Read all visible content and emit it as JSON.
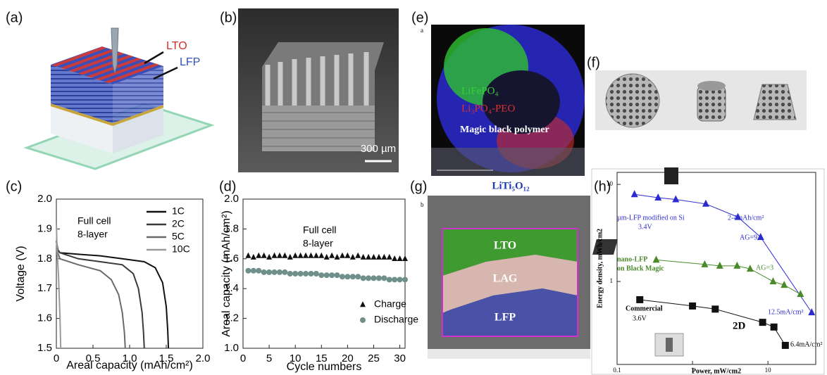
{
  "panels": {
    "a": {
      "label": "(a)",
      "lto": "LTO",
      "lfp": "LFP"
    },
    "b": {
      "label": "(b)",
      "scale": "300 µm"
    },
    "c": {
      "label": "(c)"
    },
    "d": {
      "label": "(d)"
    },
    "e": {
      "label": "(e)",
      "tag": "a",
      "line1": "LiFePO₄",
      "line2": "Li₃PO₄-PEO",
      "line3": "Magic black polymer",
      "caption": "LiTi₅O₁₂"
    },
    "f": {
      "label": "(f)"
    },
    "g": {
      "label": "(g)",
      "tag": "b",
      "lto": "LTO",
      "lag": "LAG",
      "lfp": "LFP"
    },
    "h": {
      "label": "(h)"
    }
  },
  "chart_data": [
    {
      "type": "line",
      "x_label": "Areal capacity (mAh/cm²)",
      "y_label": "Voltage (V)",
      "xlim": [
        0,
        2
      ],
      "ylim": [
        1.5,
        2
      ],
      "xticks": [
        0,
        0.5,
        {
          "value": 1,
          "label": "1.0"
        },
        1.5,
        {
          "value": 2,
          "label": "2.0"
        }
      ],
      "yticks": [
        1.5,
        1.6,
        1.7,
        1.8,
        1.9,
        {
          "value": 2,
          "label": "2.0"
        }
      ],
      "legend": "upper right",
      "annotations": [
        "Full cell",
        "8-layer"
      ],
      "series": [
        {
          "name": "1C",
          "color": "#111111",
          "x": [
            0,
            0.02,
            0.05,
            0.3,
            0.6,
            0.9,
            1.2,
            1.35,
            1.45,
            1.5,
            1.52,
            1.53
          ],
          "values": [
            1.86,
            1.83,
            1.82,
            1.815,
            1.81,
            1.8,
            1.79,
            1.77,
            1.72,
            1.64,
            1.56,
            1.5
          ]
        },
        {
          "name": "2C",
          "color": "#3a3a3a",
          "x": [
            0,
            0.02,
            0.05,
            0.3,
            0.6,
            0.9,
            1.05,
            1.12,
            1.17,
            1.19,
            1.2
          ],
          "values": [
            1.86,
            1.83,
            1.82,
            1.8,
            1.79,
            1.78,
            1.75,
            1.7,
            1.62,
            1.55,
            1.5
          ]
        },
        {
          "name": "5C",
          "color": "#6a6a6a",
          "x": [
            0,
            0.02,
            0.05,
            0.3,
            0.6,
            0.75,
            0.85,
            0.9,
            0.93,
            0.94
          ],
          "values": [
            1.86,
            1.82,
            1.8,
            1.78,
            1.76,
            1.73,
            1.68,
            1.62,
            1.55,
            1.5
          ]
        },
        {
          "name": "10C",
          "color": "#9a9a9a",
          "x": [
            0,
            0.01,
            0.03,
            0.05,
            0.06
          ],
          "values": [
            1.92,
            1.83,
            1.74,
            1.6,
            1.5
          ]
        }
      ]
    },
    {
      "type": "scatter",
      "x_label": "Cycle numbers",
      "y_label": "Areal capacity (mAh/cm²)",
      "xlim": [
        0,
        31
      ],
      "ylim": [
        1,
        2
      ],
      "xticks": [
        0,
        5,
        10,
        15,
        20,
        25,
        30
      ],
      "yticks": [
        {
          "value": 1,
          "label": "1.0"
        },
        1.2,
        1.4,
        1.6,
        1.8,
        {
          "value": 2,
          "label": "2.0"
        }
      ],
      "legend": "lower right",
      "annotations": [
        "Full cell",
        "8-layer"
      ],
      "x": [
        1,
        2,
        3,
        4,
        5,
        6,
        7,
        8,
        9,
        10,
        11,
        12,
        13,
        14,
        15,
        16,
        17,
        18,
        19,
        20,
        21,
        22,
        23,
        24,
        25,
        26,
        27,
        28,
        29,
        30,
        31
      ],
      "series": [
        {
          "name": "Charge",
          "color": "#111111",
          "marker": "triangle",
          "values": [
            1.62,
            1.61,
            1.62,
            1.62,
            1.61,
            1.62,
            1.62,
            1.62,
            1.61,
            1.62,
            1.62,
            1.62,
            1.62,
            1.62,
            1.62,
            1.61,
            1.62,
            1.61,
            1.62,
            1.62,
            1.61,
            1.62,
            1.61,
            1.61,
            1.61,
            1.61,
            1.61,
            1.61,
            1.6,
            1.6,
            1.6
          ]
        },
        {
          "name": "Discharge",
          "color": "#6f8f8a",
          "marker": "circle",
          "values": [
            1.52,
            1.52,
            1.52,
            1.51,
            1.51,
            1.51,
            1.51,
            1.51,
            1.5,
            1.5,
            1.5,
            1.5,
            1.5,
            1.5,
            1.49,
            1.49,
            1.49,
            1.49,
            1.48,
            1.48,
            1.48,
            1.48,
            1.47,
            1.47,
            1.47,
            1.47,
            1.47,
            1.46,
            1.46,
            1.46,
            1.46
          ]
        }
      ]
    },
    {
      "type": "line",
      "x_label": "Power, mW/cm2",
      "y_label": "Energy density, mWh/cm2",
      "x_log": true,
      "y_log": true,
      "xlim": [
        0.1,
        43
      ],
      "ylim": [
        0.14,
        13.3
      ],
      "xticks": [
        0.1,
        1,
        10
      ],
      "yticks": [
        1,
        10
      ],
      "annotations": [
        "3.4V",
        "2-4mAh/cm²",
        "AG=9",
        "on Black Magic",
        "AG=3",
        "12.5mA/cm²",
        "3.6V",
        "2D",
        "6.4mA/cm²"
      ],
      "series": [
        {
          "name": "µm-LFP modified on Si",
          "color": "#2b2bd0",
          "marker": "triangle",
          "x": [
            0.17,
            0.35,
            0.6,
            1.5,
            4,
            8,
            38
          ],
          "values": [
            7.9,
            7.3,
            7,
            6.3,
            4.6,
            2.86,
            0.48
          ]
        },
        {
          "name": "nano-LFP",
          "color": "#4a8a2a",
          "marker": "triangle",
          "x": [
            0.33,
            1.45,
            2.3,
            3.9,
            5.8,
            11.7,
            16.4,
            27
          ],
          "values": [
            1.67,
            1.5,
            1.45,
            1.45,
            1.35,
            1,
            0.92,
            0.74
          ]
        },
        {
          "name": "Commercial",
          "color": "#111111",
          "marker": "square",
          "x": [
            0.2,
            1,
            2,
            8.5,
            12,
            17
          ],
          "values": [
            0.65,
            0.56,
            0.52,
            0.38,
            0.34,
            0.22
          ]
        }
      ]
    }
  ]
}
